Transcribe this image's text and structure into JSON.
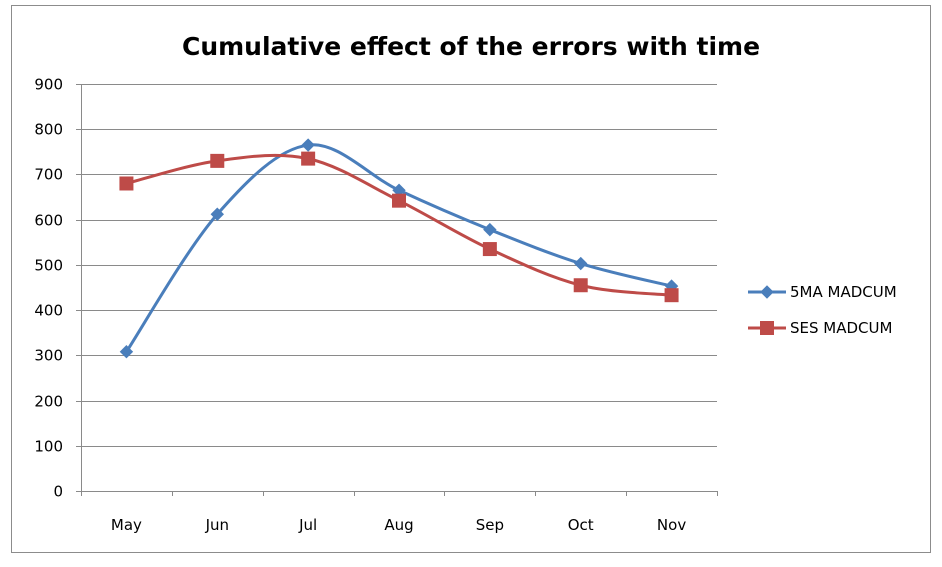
{
  "chart_data": {
    "type": "line",
    "title": "Cumulative effect of the errors with time",
    "xlabel": "",
    "ylabel": "",
    "categories": [
      "May",
      "Jun",
      "Jul",
      "Aug",
      "Sep",
      "Oct",
      "Nov"
    ],
    "ylim": [
      0,
      900
    ],
    "yticks": [
      0,
      100,
      200,
      300,
      400,
      500,
      600,
      700,
      800,
      900
    ],
    "grid": true,
    "smooth": true,
    "legend_position": "right",
    "series": [
      {
        "name": "5MA MADCUM",
        "marker": "diamond",
        "color": "#4a7ebb",
        "values": [
          308,
          612,
          765,
          665,
          578,
          503,
          453
        ]
      },
      {
        "name": "SES MADCUM",
        "marker": "square",
        "color": "#be4b48",
        "values": [
          680,
          730,
          735,
          642,
          535,
          455,
          433
        ]
      }
    ]
  }
}
